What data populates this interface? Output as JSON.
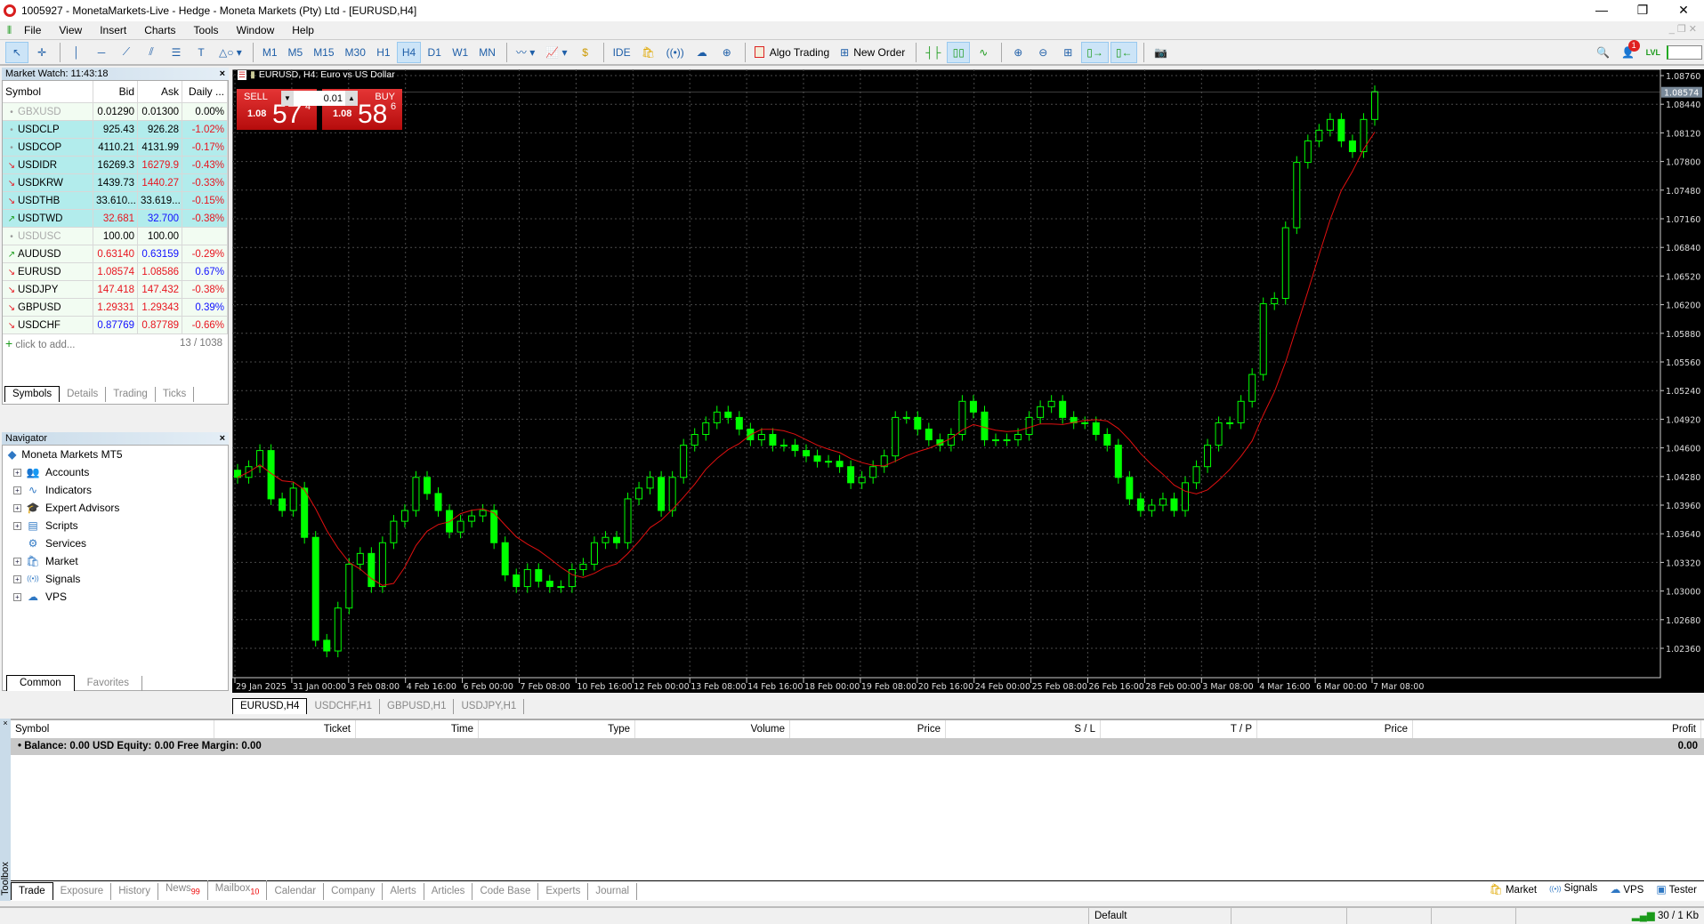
{
  "window": {
    "title": "1005927 - MonetaMarkets-Live - Hedge - Moneta Markets (Pty) Ltd - [EURUSD,H4]"
  },
  "menu": [
    "File",
    "View",
    "Insert",
    "Charts",
    "Tools",
    "Window",
    "Help"
  ],
  "toolbar": {
    "timeframes": [
      "M1",
      "M5",
      "M15",
      "M30",
      "H1",
      "H4",
      "D1",
      "W1",
      "MN"
    ],
    "active_timeframe": "H4",
    "ide": "IDE",
    "algo_trading": "Algo Trading",
    "new_order": "New Order",
    "notifications_count": "1",
    "level_label": "LVL"
  },
  "market_watch": {
    "title": "Market Watch: 11:43:18",
    "columns": [
      "Symbol",
      "Bid",
      "Ask",
      "Daily ..."
    ],
    "rows": [
      {
        "symbol": "GBXUSD",
        "trend": "none",
        "inactive": true,
        "bid": "0.01290",
        "bid_color": "#000000",
        "ask": "0.01300",
        "ask_color": "#000000",
        "daily": "0.00%",
        "daily_color": "#000000",
        "bg": "#f2fcf2"
      },
      {
        "symbol": "USDCLP",
        "trend": "none",
        "bid": "925.43",
        "bid_color": "#000000",
        "ask": "926.28",
        "ask_color": "#000000",
        "daily": "-1.02%",
        "daily_color": "#e8141e",
        "bg": "#b2ecec"
      },
      {
        "symbol": "USDCOP",
        "trend": "none",
        "bid": "4110.21",
        "bid_color": "#000000",
        "ask": "4131.99",
        "ask_color": "#000000",
        "daily": "-0.17%",
        "daily_color": "#e8141e",
        "bg": "#b2ecec"
      },
      {
        "symbol": "USDIDR",
        "trend": "down",
        "bid": "16269.3",
        "bid_color": "#000000",
        "ask": "16279.9",
        "ask_color": "#e8141e",
        "daily": "-0.43%",
        "daily_color": "#e8141e",
        "bg": "#b2ecec"
      },
      {
        "symbol": "USDKRW",
        "trend": "down",
        "bid": "1439.73",
        "bid_color": "#000000",
        "ask": "1440.27",
        "ask_color": "#e8141e",
        "daily": "-0.33%",
        "daily_color": "#e8141e",
        "bg": "#b2ecec"
      },
      {
        "symbol": "USDTHB",
        "trend": "down",
        "bid": "33.610...",
        "bid_color": "#000000",
        "ask": "33.619...",
        "ask_color": "#000000",
        "daily": "-0.15%",
        "daily_color": "#e8141e",
        "bg": "#b2ecec"
      },
      {
        "symbol": "USDTWD",
        "trend": "up",
        "bid": "32.681",
        "bid_color": "#e8141e",
        "ask": "32.700",
        "ask_color": "#1010ff",
        "daily": "-0.38%",
        "daily_color": "#e8141e",
        "bg": "#b2ecec"
      },
      {
        "symbol": "USDUSC",
        "trend": "none",
        "inactive": true,
        "bid": "100.00",
        "bid_color": "#000000",
        "ask": "100.00",
        "ask_color": "#000000",
        "daily": "",
        "daily_color": "#000000",
        "bg": "#f2fcf2"
      },
      {
        "symbol": "AUDUSD",
        "trend": "up",
        "bid": "0.63140",
        "bid_color": "#e8141e",
        "ask": "0.63159",
        "ask_color": "#1010ff",
        "daily": "-0.29%",
        "daily_color": "#e8141e",
        "bg": "#f2fcf2"
      },
      {
        "symbol": "EURUSD",
        "trend": "down",
        "bid": "1.08574",
        "bid_color": "#e8141e",
        "ask": "1.08586",
        "ask_color": "#e8141e",
        "daily": "0.67%",
        "daily_color": "#1010ff",
        "bg": "#f2fcf2"
      },
      {
        "symbol": "USDJPY",
        "trend": "down",
        "bid": "147.418",
        "bid_color": "#e8141e",
        "ask": "147.432",
        "ask_color": "#e8141e",
        "daily": "-0.38%",
        "daily_color": "#e8141e",
        "bg": "#f2fcf2"
      },
      {
        "symbol": "GBPUSD",
        "trend": "down",
        "bid": "1.29331",
        "bid_color": "#e8141e",
        "ask": "1.29343",
        "ask_color": "#e8141e",
        "daily": "0.39%",
        "daily_color": "#1010ff",
        "bg": "#f2fcf2"
      },
      {
        "symbol": "USDCHF",
        "trend": "down",
        "bid": "0.87769",
        "bid_color": "#1010ff",
        "ask": "0.87789",
        "ask_color": "#e8141e",
        "daily": "-0.66%",
        "daily_color": "#e8141e",
        "bg": "#f2fcf2"
      }
    ],
    "add_label": "click to add...",
    "count": "13 / 1038",
    "tabs": [
      "Symbols",
      "Details",
      "Trading",
      "Ticks"
    ]
  },
  "navigator": {
    "title": "Navigator",
    "root": "Moneta Markets MT5",
    "items": [
      {
        "label": "Accounts",
        "icon": "accounts-icon",
        "glyph": "👥",
        "expand": true
      },
      {
        "label": "Indicators",
        "icon": "indicators-icon",
        "glyph": "∿",
        "expand": true
      },
      {
        "label": "Expert Advisors",
        "icon": "expert-advisors-icon",
        "glyph": "🎓",
        "expand": true
      },
      {
        "label": "Scripts",
        "icon": "scripts-icon",
        "glyph": "▤",
        "expand": true
      },
      {
        "label": "Services",
        "icon": "services-icon",
        "glyph": "⚙",
        "expand": false
      },
      {
        "label": "Market",
        "icon": "market-icon",
        "glyph": "🛍",
        "expand": true
      },
      {
        "label": "Signals",
        "icon": "signals-icon",
        "glyph": "((•))",
        "expand": true
      },
      {
        "label": "VPS",
        "icon": "vps-icon",
        "glyph": "☁",
        "expand": true
      }
    ],
    "tabs": [
      "Common",
      "Favorites"
    ]
  },
  "chart": {
    "title": "EURUSD, H4:  Euro vs US Dollar",
    "sell_label": "SELL",
    "buy_label": "BUY",
    "volume": "0.01",
    "sell_price": {
      "big": "1.08",
      "main": "57",
      "sup": "4"
    },
    "buy_price": {
      "big": "1.08",
      "main": "58",
      "sup": "6"
    },
    "tabs": [
      "EURUSD,H4",
      "USDCHF,H1",
      "GBPUSD,H1",
      "USDJPY,H1"
    ]
  },
  "chart_data": {
    "type": "candlestick",
    "symbol": "EURUSD",
    "timeframe": "H4",
    "ylim": [
      1.0205,
      1.0885
    ],
    "grid": true,
    "bull_color": "#00ff00",
    "bear_color": "#00ff00",
    "ma_color": "#e01010",
    "current_price": "1.08574",
    "yticks": [
      "1.08760",
      "1.08440",
      "1.08120",
      "1.07800",
      "1.07480",
      "1.07160",
      "1.06840",
      "1.06520",
      "1.06200",
      "1.05880",
      "1.05560",
      "1.05240",
      "1.04920",
      "1.04600",
      "1.04280",
      "1.03960",
      "1.03640",
      "1.03320",
      "1.03000",
      "1.02680",
      "1.02360"
    ],
    "xticks": [
      "29 Jan 2025",
      "31 Jan 00:00",
      "3 Feb 08:00",
      "4 Feb 16:00",
      "6 Feb 00:00",
      "7 Feb 08:00",
      "10 Feb 16:00",
      "12 Feb 00:00",
      "13 Feb 08:00",
      "14 Feb 16:00",
      "18 Feb 00:00",
      "19 Feb 08:00",
      "20 Feb 16:00",
      "24 Feb 00:00",
      "25 Feb 08:00",
      "26 Feb 16:00",
      "28 Feb 00:00",
      "3 Mar 08:00",
      "4 Mar 16:00",
      "6 Mar 00:00",
      "7 Mar 08:00"
    ],
    "closes": [
      1.0427,
      1.0439,
      1.0457,
      1.0403,
      1.039,
      1.0415,
      1.036,
      1.0245,
      1.0233,
      1.0281,
      1.033,
      1.0342,
      1.0305,
      1.0354,
      1.0378,
      1.039,
      1.0427,
      1.0409,
      1.039,
      1.0366,
      1.0378,
      1.0384,
      1.039,
      1.0354,
      1.0318,
      1.0305,
      1.0324,
      1.0311,
      1.0305,
      1.0305,
      1.0324,
      1.033,
      1.0354,
      1.036,
      1.0354,
      1.0403,
      1.0415,
      1.0427,
      1.039,
      1.0427,
      1.0463,
      1.0475,
      1.0488,
      1.05,
      1.0494,
      1.0481,
      1.0469,
      1.0475,
      1.0463,
      1.0463,
      1.0457,
      1.0451,
      1.0445,
      1.0445,
      1.0439,
      1.0421,
      1.0427,
      1.0439,
      1.0451,
      1.0494,
      1.0494,
      1.0481,
      1.0469,
      1.0463,
      1.0475,
      1.0512,
      1.05,
      1.0469,
      1.0469,
      1.0469,
      1.0475,
      1.0494,
      1.0506,
      1.0512,
      1.0494,
      1.0488,
      1.0488,
      1.0475,
      1.0463,
      1.0427,
      1.0403,
      1.039,
      1.0396,
      1.0403,
      1.039,
      1.0421,
      1.0439,
      1.0463,
      1.0488,
      1.0488,
      1.0512,
      1.0542,
      1.0621,
      1.0627,
      1.0706,
      1.0779,
      1.0803,
      1.0815,
      1.0827,
      1.0803,
      1.0791,
      1.0827,
      1.0858
    ]
  },
  "toolbox": {
    "label": "Toolbox",
    "columns": [
      "Symbol",
      "Ticket",
      "Time",
      "Type",
      "Volume",
      "Price",
      "S / L",
      "T / P",
      "Price",
      "Profit"
    ],
    "balance": "Balance: 0.00 USD  Equity: 0.00  Free Margin: 0.00",
    "profit": "0.00",
    "tabs": [
      {
        "label": "Trade"
      },
      {
        "label": "Exposure"
      },
      {
        "label": "History"
      },
      {
        "label": "News",
        "badge": "99"
      },
      {
        "label": "Mailbox",
        "badge": "10"
      },
      {
        "label": "Calendar"
      },
      {
        "label": "Company"
      },
      {
        "label": "Alerts"
      },
      {
        "label": "Articles"
      },
      {
        "label": "Code Base"
      },
      {
        "label": "Experts"
      },
      {
        "label": "Journal"
      }
    ],
    "right_tabs": [
      "Market",
      "Signals",
      "VPS",
      "Tester"
    ]
  },
  "status": {
    "profile": "Default",
    "traffic": "30 / 1 Kb"
  }
}
